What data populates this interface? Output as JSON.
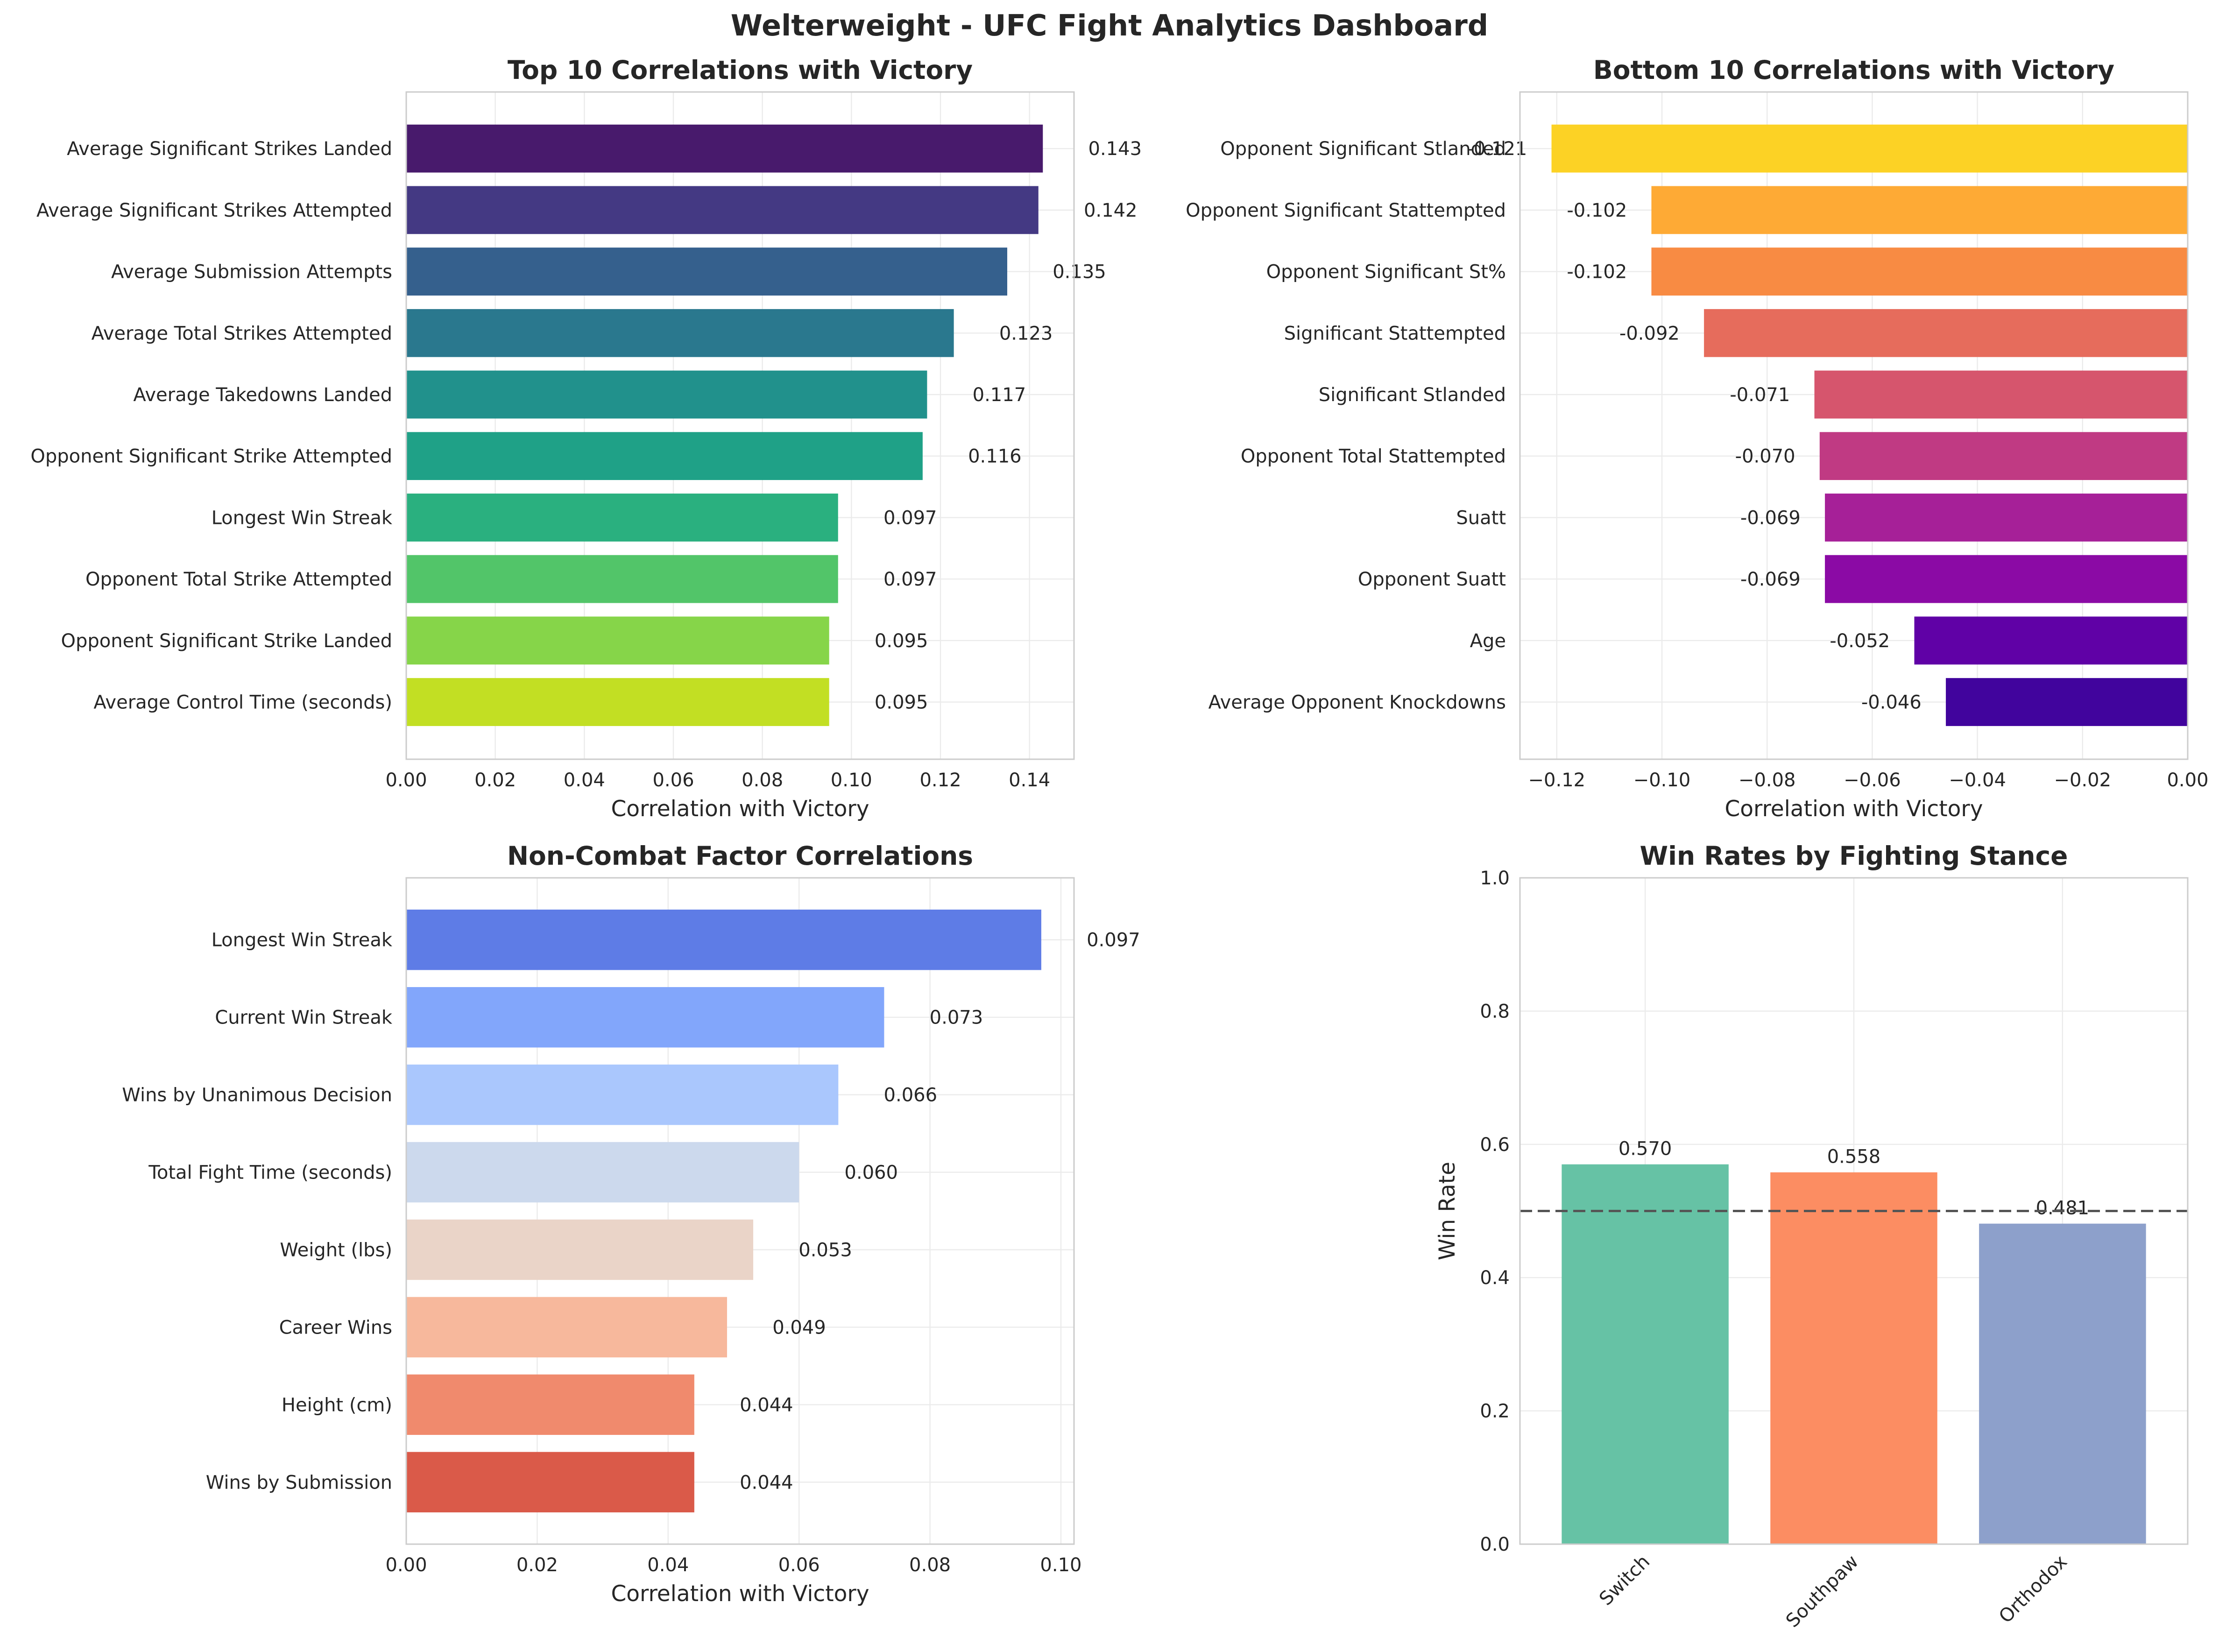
{
  "title": "Welterweight - UFC Fight Analytics Dashboard",
  "colors": {
    "top": [
      "#481a6c",
      "#443983",
      "#35608d",
      "#2a788e",
      "#21918c",
      "#1fa187",
      "#2ab07f",
      "#52c569",
      "#86d549",
      "#c2df23"
    ],
    "bottom": [
      "#fcd225",
      "#feaa35",
      "#f88b43",
      "#e66c5c",
      "#d6556d",
      "#c03a83",
      "#a62098",
      "#8b0aa5",
      "#6001a6",
      "#41049d"
    ],
    "noncombat": [
      "#5e7ce6",
      "#82a6fb",
      "#aac7fd",
      "#ccd9ed",
      "#ead4c8",
      "#f7b89c",
      "#f08a6d",
      "#da5a49"
    ],
    "stance": [
      "#66c2a5",
      "#fc8d62",
      "#8da0cb"
    ],
    "reference_line": "#555555"
  },
  "chart_data": [
    {
      "type": "bar",
      "orientation": "horizontal",
      "title": "Top 10 Correlations with Victory",
      "xlabel": "Correlation with Victory",
      "xlim": [
        0,
        0.15
      ],
      "xticks": [
        "0.00",
        "0.02",
        "0.04",
        "0.06",
        "0.08",
        "0.10",
        "0.12",
        "0.14"
      ],
      "grid": true,
      "categories": [
        "Average Significant Strikes Landed",
        "Average Significant Strikes Attempted",
        "Average Submission Attempts",
        "Average Total Strikes Attempted",
        "Average Takedowns Landed",
        "Opponent Significant Strike Attempted",
        "Longest Win Streak",
        "Opponent Total Strike Attempted",
        "Opponent Significant Strike Landed",
        "Average Control Time (seconds)"
      ],
      "values": [
        0.143,
        0.142,
        0.135,
        0.123,
        0.117,
        0.116,
        0.097,
        0.097,
        0.095,
        0.095
      ],
      "labels": [
        "0.143",
        "0.142",
        "0.135",
        "0.123",
        "0.117",
        "0.116",
        "0.097",
        "0.097",
        "0.095",
        "0.095"
      ]
    },
    {
      "type": "bar",
      "orientation": "horizontal",
      "title": "Bottom 10 Correlations with Victory",
      "xlabel": "Correlation with Victory",
      "xlim": [
        -0.127,
        0
      ],
      "xticks": [
        "−0.12",
        "−0.10",
        "−0.08",
        "−0.06",
        "−0.04",
        "−0.02",
        "0.00"
      ],
      "grid": true,
      "categories": [
        "Opponent Significant Stlanded",
        "Opponent Significant Stattempted",
        "Opponent Significant St%",
        "Significant Stattempted",
        "Significant Stlanded",
        "Opponent Total Stattempted",
        "Suatt",
        "Opponent Suatt",
        "Age",
        "Average Opponent Knockdowns"
      ],
      "values": [
        -0.121,
        -0.102,
        -0.102,
        -0.092,
        -0.071,
        -0.07,
        -0.069,
        -0.069,
        -0.052,
        -0.046
      ],
      "labels": [
        "-0.121",
        "-0.102",
        "-0.102",
        "-0.092",
        "-0.071",
        "-0.070",
        "-0.069",
        "-0.069",
        "-0.052",
        "-0.046"
      ]
    },
    {
      "type": "bar",
      "orientation": "horizontal",
      "title": "Non-Combat Factor Correlations",
      "xlabel": "Correlation with Victory",
      "xlim": [
        0,
        0.102
      ],
      "xticks": [
        "0.00",
        "0.02",
        "0.04",
        "0.06",
        "0.08",
        "0.10"
      ],
      "grid": true,
      "categories": [
        "Longest Win Streak",
        "Current Win Streak",
        "Wins by Unanimous Decision",
        "Total Fight Time (seconds)",
        "Weight (lbs)",
        "Career Wins",
        "Height (cm)",
        "Wins by Submission"
      ],
      "values": [
        0.097,
        0.073,
        0.066,
        0.06,
        0.053,
        0.049,
        0.044,
        0.044
      ],
      "labels": [
        "0.097",
        "0.073",
        "0.066",
        "0.060",
        "0.053",
        "0.049",
        "0.044",
        "0.044"
      ]
    },
    {
      "type": "bar",
      "orientation": "vertical",
      "title": "Win Rates by Fighting Stance",
      "ylabel": "Win Rate",
      "ylim": [
        0,
        1
      ],
      "yticks": [
        "0.0",
        "0.2",
        "0.4",
        "0.6",
        "0.8",
        "1.0"
      ],
      "grid": true,
      "categories": [
        "Switch",
        "Southpaw",
        "Orthodox"
      ],
      "values": [
        0.57,
        0.558,
        0.481
      ],
      "labels": [
        "0.570",
        "0.558",
        "0.481"
      ],
      "reference_line": 0.5
    }
  ]
}
